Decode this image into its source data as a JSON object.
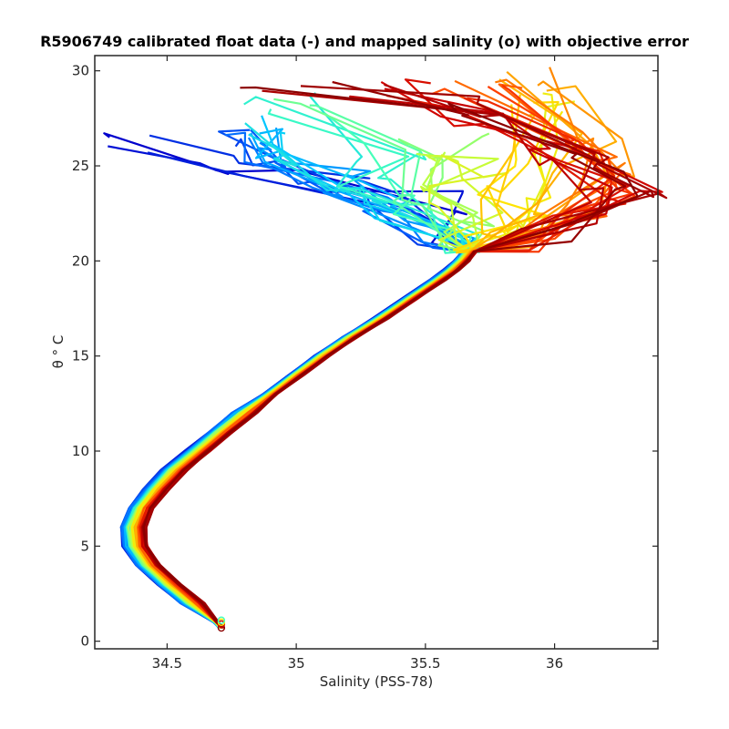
{
  "chart_data": {
    "type": "line",
    "title": "R5906749 calibrated float data (-) and mapped salinity (o) with objective error",
    "xlabel": "Salinity (PSS-78)",
    "ylabel": "θ ° C",
    "xlim": [
      34.22,
      36.4
    ],
    "ylim": [
      -0.4,
      30.8
    ],
    "x_ticks": [
      34.5,
      35,
      35.5,
      36
    ],
    "x_tick_labels": [
      "34.5",
      "35",
      "35.5",
      "36"
    ],
    "y_ticks": [
      0,
      5,
      10,
      15,
      20,
      25,
      30
    ],
    "y_tick_labels": [
      "0",
      "5",
      "10",
      "15",
      "20",
      "25",
      "30"
    ],
    "grid": false,
    "colormap": "jet",
    "profile_count": 60,
    "common_profile": {
      "theta": [
        0.7,
        1.0,
        2.0,
        3.0,
        4.0,
        5.0,
        6.0,
        7.0,
        8.0,
        9.0,
        10.0,
        11.0,
        12.0,
        13.0,
        14.0,
        15.0,
        16.0,
        17.0,
        18.0,
        19.0,
        19.5,
        20.0,
        20.5
      ],
      "salinity": [
        34.71,
        34.69,
        34.6,
        34.51,
        34.43,
        34.38,
        34.37,
        34.4,
        34.46,
        34.53,
        34.62,
        34.71,
        34.8,
        34.9,
        35.0,
        35.1,
        35.21,
        35.33,
        35.44,
        35.55,
        35.6,
        35.64,
        35.67
      ]
    },
    "series": [
      {
        "color": "#0000cd",
        "surface": [
          [
            35.63,
            21
          ],
          [
            35.5,
            23
          ],
          [
            35.1,
            24.2
          ],
          [
            34.75,
            24.9
          ],
          [
            34.4,
            26.2
          ]
        ]
      },
      {
        "color": "#0066ff",
        "surface": [
          [
            35.6,
            21
          ],
          [
            35.4,
            22.8
          ],
          [
            35.15,
            23.9
          ],
          [
            34.95,
            25.4
          ],
          [
            34.8,
            26.7
          ]
        ]
      },
      {
        "color": "#00c8ff",
        "surface": [
          [
            35.58,
            21
          ],
          [
            35.4,
            22.7
          ],
          [
            35.2,
            24.1
          ],
          [
            35.0,
            25.6
          ],
          [
            34.85,
            27.2
          ]
        ]
      },
      {
        "color": "#40ffbf",
        "surface": [
          [
            35.6,
            21
          ],
          [
            35.45,
            22.6
          ],
          [
            35.3,
            23.8
          ],
          [
            35.3,
            25.8
          ],
          [
            35.0,
            28.1
          ]
        ]
      },
      {
        "color": "#bfff40",
        "surface": [
          [
            35.66,
            21
          ],
          [
            35.62,
            22.6
          ],
          [
            35.55,
            24.0
          ],
          [
            35.65,
            25.2
          ],
          [
            35.55,
            26.0
          ]
        ]
      },
      {
        "color": "#ffe600",
        "surface": [
          [
            35.75,
            20.8
          ],
          [
            35.82,
            22.0
          ],
          [
            35.85,
            23.6
          ],
          [
            35.95,
            25.5
          ],
          [
            35.9,
            28.2
          ]
        ]
      },
      {
        "color": "#ffa000",
        "surface": [
          [
            35.85,
            21
          ],
          [
            36.05,
            22.5
          ],
          [
            36.15,
            24.6
          ],
          [
            36.2,
            26.4
          ],
          [
            35.9,
            29.6
          ]
        ]
      },
      {
        "color": "#ff4000",
        "surface": [
          [
            35.95,
            21
          ],
          [
            36.15,
            22.6
          ],
          [
            36.25,
            24.0
          ],
          [
            36.15,
            25.7
          ],
          [
            35.7,
            28.9
          ]
        ]
      },
      {
        "color": "#cd0000",
        "surface": [
          [
            36.1,
            22
          ],
          [
            36.25,
            23.5
          ],
          [
            36.05,
            25.8
          ],
          [
            35.7,
            27.5
          ],
          [
            35.3,
            29.2
          ]
        ]
      },
      {
        "color": "#8b0000",
        "surface": [
          [
            36.0,
            21.5
          ],
          [
            36.3,
            23.4
          ],
          [
            36.2,
            25.1
          ],
          [
            35.65,
            27.9
          ],
          [
            34.98,
            29.2
          ]
        ]
      }
    ]
  }
}
